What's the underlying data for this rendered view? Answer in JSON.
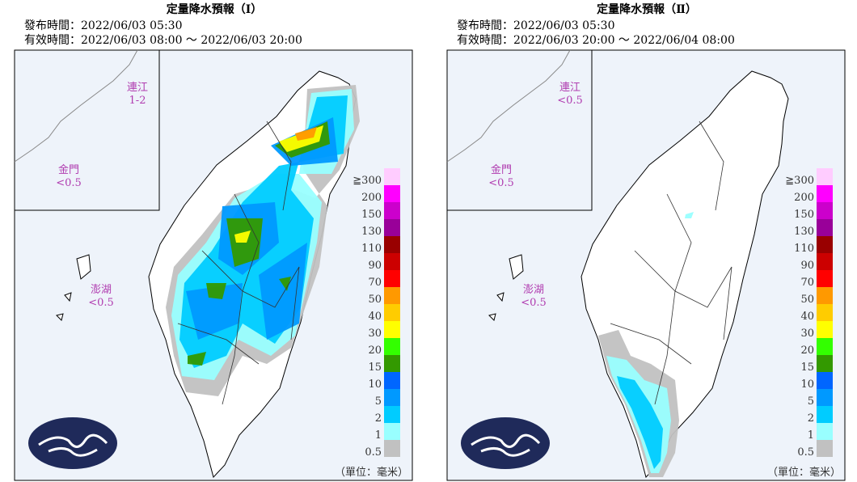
{
  "panels": [
    {
      "title": "定量降水預報（Ⅰ）",
      "issued": "發布時間：2022/06/03 05:30",
      "valid": "有效時間：2022/06/03 08:00 ～ 2022/06/03 20:00",
      "islands": [
        {
          "name": "連江",
          "value": "1-2"
        },
        {
          "name": "金門",
          "value": "<0.5"
        },
        {
          "name": "澎湖",
          "value": "<0.5"
        }
      ],
      "unit": "（單位：毫米）"
    },
    {
      "title": "定量降水預報（Ⅱ）",
      "issued": "發布時間：2022/06/03 05:30",
      "valid": "有效時間：2022/06/03 20:00 ～ 2022/06/04 08:00",
      "islands": [
        {
          "name": "連江",
          "value": "<0.5"
        },
        {
          "name": "金門",
          "value": "<0.5"
        },
        {
          "name": "澎湖",
          "value": "<0.5"
        }
      ],
      "unit": "（單位：毫米）"
    }
  ],
  "legend": {
    "labels": [
      "0.5",
      "1",
      "2",
      "5",
      "10",
      "15",
      "20",
      "30",
      "40",
      "50",
      "70",
      "90",
      "110",
      "130",
      "150",
      "200",
      "≧300"
    ],
    "colors": [
      "#c1c1c1",
      "#99ffff",
      "#00ccff",
      "#0099ff",
      "#0066ff",
      "#339900",
      "#33ff00",
      "#ffff00",
      "#ffcc00",
      "#ff9900",
      "#ff0000",
      "#cc0000",
      "#990000",
      "#990099",
      "#cc00cc",
      "#ff00ff",
      "#ffccff"
    ]
  }
}
